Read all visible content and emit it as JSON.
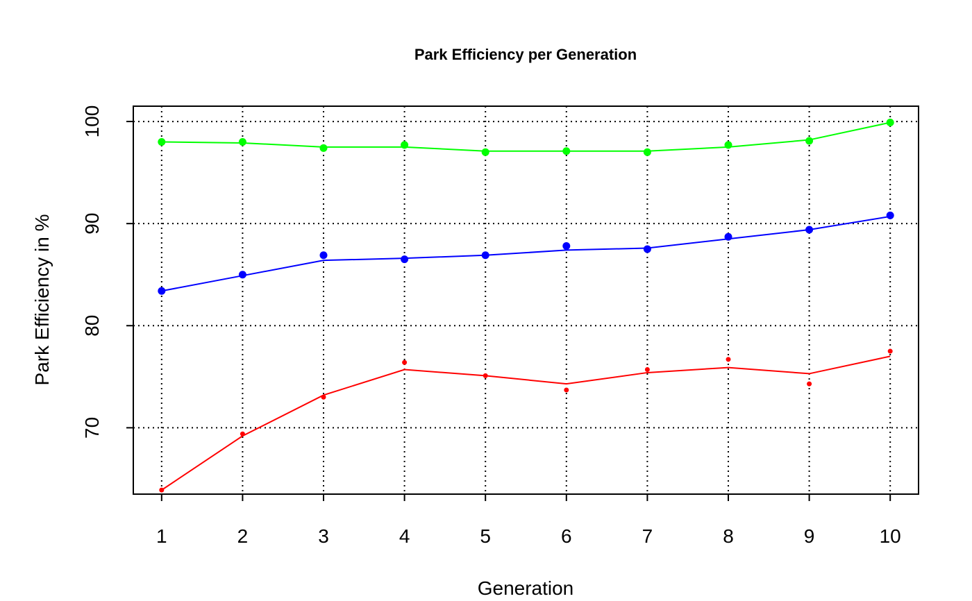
{
  "chart_data": {
    "type": "line",
    "title": "Park Efficiency per Generation",
    "xlabel": "Generation",
    "ylabel": "Park Efficiency in %",
    "x": [
      1,
      2,
      3,
      4,
      5,
      6,
      7,
      8,
      9,
      10
    ],
    "x_ticks": [
      "1",
      "2",
      "3",
      "4",
      "5",
      "6",
      "7",
      "8",
      "9",
      "10"
    ],
    "y_ticks": [
      "70",
      "80",
      "90",
      "100"
    ],
    "xlim": [
      0.65,
      10.35
    ],
    "ylim": [
      63.5,
      101.5
    ],
    "grid": true,
    "series": [
      {
        "color": "#00ff00",
        "marker_size": "large",
        "points": [
          98.0,
          98.0,
          97.4,
          97.7,
          97.0,
          97.1,
          97.0,
          97.7,
          98.1,
          99.9
        ],
        "line": [
          98.0,
          97.9,
          97.5,
          97.5,
          97.1,
          97.1,
          97.1,
          97.5,
          98.2,
          99.9
        ]
      },
      {
        "color": "#0000ff",
        "marker_size": "large",
        "points": [
          83.4,
          85.0,
          86.9,
          86.5,
          86.9,
          87.8,
          87.5,
          88.7,
          89.4,
          90.8
        ],
        "line": [
          83.4,
          84.9,
          86.4,
          86.6,
          86.9,
          87.4,
          87.6,
          88.5,
          89.4,
          90.7
        ]
      },
      {
        "color": "#ff0000",
        "marker_size": "small",
        "points": [
          63.9,
          69.4,
          73.0,
          76.4,
          75.1,
          73.7,
          75.7,
          76.7,
          74.3,
          77.5
        ],
        "line": [
          63.9,
          69.2,
          73.2,
          75.7,
          75.1,
          74.3,
          75.4,
          75.9,
          75.3,
          77.0
        ]
      }
    ]
  }
}
